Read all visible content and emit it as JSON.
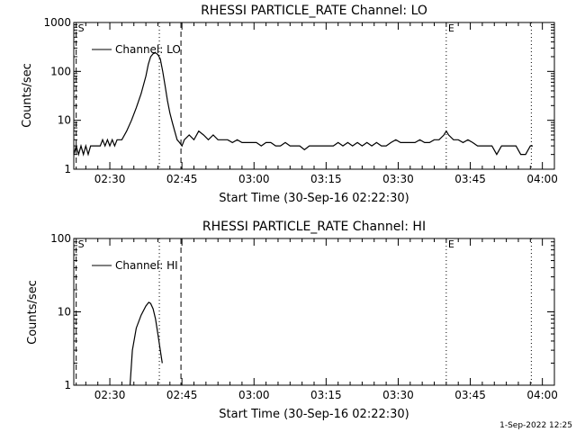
{
  "colors": {
    "background": "#ffffff",
    "foreground": "#000000"
  },
  "footer_timestamp": "1-Sep-2022 12:25",
  "chart_data": [
    {
      "type": "line",
      "title": "RHESSI PARTICLE_RATE Channel: LO",
      "xlabel": "Start Time (30-Sep-16 02:22:30)",
      "ylabel": "Counts/sec",
      "yscale": "log",
      "ylim": [
        1,
        1000
      ],
      "xlim_minutes": [
        0,
        100
      ],
      "x_ticks": [
        {
          "t": 7.5,
          "label": "02:30"
        },
        {
          "t": 22.5,
          "label": "02:45"
        },
        {
          "t": 37.5,
          "label": "03:00"
        },
        {
          "t": 52.5,
          "label": "03:15"
        },
        {
          "t": 67.5,
          "label": "03:30"
        },
        {
          "t": 82.5,
          "label": "03:45"
        },
        {
          "t": 97.5,
          "label": "04:00"
        }
      ],
      "y_ticks": [
        {
          "v": 1,
          "label": "1"
        },
        {
          "v": 10,
          "label": "10"
        },
        {
          "v": 100,
          "label": "100"
        },
        {
          "v": 1000,
          "label": "1000"
        }
      ],
      "legend": {
        "label": "Channel: LO",
        "position": "top-left"
      },
      "markers": [
        {
          "t": 0.5,
          "style": "dashed",
          "label": "S"
        },
        {
          "t": 17.8,
          "style": "dotted",
          "label": ""
        },
        {
          "t": 22.3,
          "style": "dashed",
          "label": ""
        },
        {
          "t": 77.5,
          "style": "dotted",
          "label": "E"
        },
        {
          "t": 95.2,
          "style": "dotted",
          "label": ""
        }
      ],
      "series": [
        {
          "name": "Channel: LO",
          "x": [
            0,
            0.5,
            1,
            1.5,
            2,
            2.5,
            3,
            3.5,
            4,
            4.5,
            5,
            5.5,
            6,
            6.5,
            7,
            7.5,
            8,
            8.5,
            9,
            9.5,
            10,
            11,
            12,
            13,
            14,
            15,
            15.5,
            16,
            16.5,
            17,
            17.5,
            18,
            18.5,
            19,
            19.5,
            20,
            20.5,
            21,
            21.5,
            22,
            22.5,
            23,
            24,
            25,
            26,
            27,
            28,
            29,
            30,
            31,
            32,
            33,
            34,
            35,
            36,
            37,
            38,
            39,
            40,
            41,
            42,
            43,
            44,
            45,
            46,
            47,
            48,
            49,
            50,
            51,
            52,
            53,
            54,
            55,
            56,
            57,
            58,
            59,
            60,
            61,
            62,
            63,
            64,
            65,
            66,
            67,
            68,
            69,
            70,
            71,
            72,
            73,
            74,
            75,
            76,
            77,
            77.5,
            78,
            79,
            80,
            81,
            82,
            83,
            84,
            85,
            86,
            87,
            88,
            89,
            90,
            91,
            92,
            93,
            94,
            95,
            95.5
          ],
          "values": [
            2,
            3,
            2,
            3,
            2,
            3,
            2,
            3,
            3,
            3,
            3,
            3,
            4,
            3,
            4,
            3,
            4,
            3,
            4,
            4,
            4,
            6,
            10,
            18,
            35,
            80,
            140,
            200,
            230,
            240,
            220,
            180,
            100,
            50,
            25,
            14,
            9,
            6,
            4,
            3.5,
            3,
            4,
            5,
            4,
            6,
            5,
            4,
            5,
            4,
            4,
            4,
            3.5,
            4,
            3.5,
            3.5,
            3.5,
            3.5,
            3,
            3.5,
            3.5,
            3,
            3,
            3.5,
            3,
            3,
            3,
            2.5,
            3,
            3,
            3,
            3,
            3,
            3,
            3.5,
            3,
            3.5,
            3,
            3.5,
            3,
            3.5,
            3,
            3.5,
            3,
            3,
            3.5,
            4,
            3.5,
            3.5,
            3.5,
            3.5,
            4,
            3.5,
            3.5,
            4,
            4,
            5,
            6,
            5,
            4,
            4,
            3.5,
            4,
            3.5,
            3,
            3,
            3,
            3,
            2,
            3,
            3,
            3,
            3,
            2,
            2,
            3,
            3
          ]
        }
      ]
    },
    {
      "type": "line",
      "title": "RHESSI PARTICLE_RATE Channel: HI",
      "xlabel": "Start Time (30-Sep-16 02:22:30)",
      "ylabel": "Counts/sec",
      "yscale": "log",
      "ylim": [
        1,
        100
      ],
      "xlim_minutes": [
        0,
        100
      ],
      "x_ticks": [
        {
          "t": 7.5,
          "label": "02:30"
        },
        {
          "t": 22.5,
          "label": "02:45"
        },
        {
          "t": 37.5,
          "label": "03:00"
        },
        {
          "t": 52.5,
          "label": "03:15"
        },
        {
          "t": 67.5,
          "label": "03:30"
        },
        {
          "t": 82.5,
          "label": "03:45"
        },
        {
          "t": 97.5,
          "label": "04:00"
        }
      ],
      "y_ticks": [
        {
          "v": 1,
          "label": "1"
        },
        {
          "v": 10,
          "label": "10"
        },
        {
          "v": 100,
          "label": "100"
        }
      ],
      "legend": {
        "label": "Channel: HI",
        "position": "top-left"
      },
      "markers": [
        {
          "t": 0.5,
          "style": "dashed",
          "label": "S"
        },
        {
          "t": 17.8,
          "style": "dotted",
          "label": ""
        },
        {
          "t": 22.3,
          "style": "dashed",
          "label": ""
        },
        {
          "t": 77.5,
          "style": "dotted",
          "label": "E"
        },
        {
          "t": 95.2,
          "style": "dotted",
          "label": ""
        }
      ],
      "series": [
        {
          "name": "Channel: HI",
          "x": [
            11.7,
            12.2,
            13,
            14,
            15,
            15.6,
            16,
            16.5,
            17,
            17.5,
            18,
            18.4
          ],
          "values": [
            1,
            3,
            6,
            9,
            12,
            13.5,
            13,
            11,
            8,
            5,
            3,
            2
          ]
        }
      ]
    }
  ]
}
